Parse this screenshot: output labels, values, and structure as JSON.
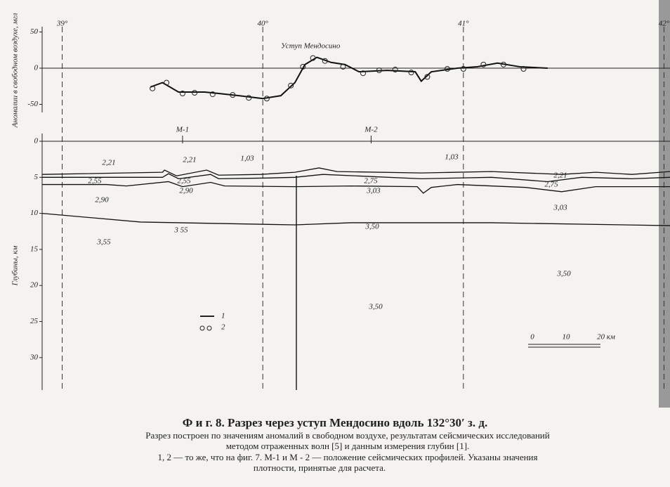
{
  "figure": {
    "x_ticks": [
      {
        "value": 39,
        "label": "39°"
      },
      {
        "value": 40,
        "label": "40°"
      },
      {
        "value": 41,
        "label": "41°"
      },
      {
        "value": 42,
        "label": "42°"
      }
    ],
    "xlim": [
      38.9,
      42.03
    ],
    "anomaly_panel": {
      "y_label": "Аномалии в свободном воздухе, мгл",
      "yticks": [
        50,
        0,
        -50
      ],
      "annotation": "Уступ Мендосино",
      "curve": {
        "x": [
          39.44,
          39.5,
          39.58,
          39.71,
          39.78,
          39.88,
          40.0,
          40.09,
          40.16,
          40.21,
          40.27,
          40.34,
          40.41,
          40.48,
          40.62,
          40.76,
          40.79,
          40.84,
          40.97,
          41.07,
          41.17,
          41.28,
          41.42
        ],
        "values": [
          -26,
          -20,
          -33,
          -33,
          -35,
          -38,
          -42,
          -38,
          -20,
          5,
          15,
          8,
          5,
          -5,
          -3,
          -5,
          -18,
          -5,
          0,
          2,
          7,
          2,
          0
        ]
      },
      "observed": {
        "x": [
          39.45,
          39.52,
          39.6,
          39.66,
          39.75,
          39.85,
          39.93,
          40.02,
          40.14,
          40.2,
          40.25,
          40.31,
          40.4,
          40.5,
          40.58,
          40.66,
          40.74,
          40.82,
          40.92,
          41.0,
          41.1,
          41.2,
          41.3
        ],
        "values": [
          -28,
          -20,
          -35,
          -34,
          -36,
          -37,
          -41,
          -42,
          -24,
          2,
          14,
          10,
          2,
          -7,
          -3,
          -2,
          -6,
          -12,
          -1,
          -1,
          5,
          5,
          -1
        ]
      }
    },
    "section_panel": {
      "y_label": "Глубины, км",
      "yticks": [
        0,
        5,
        10,
        15,
        20,
        25,
        30
      ],
      "ylim": [
        0,
        34.5
      ],
      "profiles": [
        {
          "name": "М-1",
          "x": 39.6
        },
        {
          "name": "М-2",
          "x": 40.54
        }
      ],
      "boundaries": [
        {
          "x": [
            38.9,
            39.5,
            39.51,
            39.57,
            39.72,
            39.78,
            39.99,
            40.16,
            40.28,
            40.37,
            40.79,
            41.14,
            41.49,
            41.66,
            41.84,
            42.03
          ],
          "depth": [
            4.6,
            4.3,
            4.0,
            4.8,
            4.0,
            4.7,
            4.6,
            4.3,
            3.7,
            4.2,
            4.4,
            4.2,
            4.6,
            4.3,
            4.6,
            4.2
          ]
        },
        {
          "x": [
            38.9,
            39.5,
            39.53,
            39.58,
            39.74,
            39.78,
            40.02,
            40.16,
            40.3,
            40.79,
            41.14,
            41.42,
            41.59,
            41.84,
            42.03
          ],
          "depth": [
            5.0,
            5.0,
            4.5,
            5.2,
            4.6,
            5.2,
            5.1,
            5.0,
            4.6,
            5.2,
            5.0,
            5.6,
            5.0,
            5.2,
            5.0
          ]
        },
        {
          "x": [
            38.9,
            39.22,
            39.32,
            39.53,
            39.6,
            39.74,
            39.81,
            40.16,
            40.44,
            40.77,
            40.8,
            40.84,
            40.97,
            41.31,
            41.49,
            41.66,
            42.03
          ],
          "depth": [
            6.0,
            6.0,
            6.2,
            5.6,
            6.3,
            5.7,
            6.2,
            6.3,
            6.2,
            6.3,
            7.2,
            6.4,
            6.0,
            6.4,
            7.0,
            6.3,
            6.3
          ]
        },
        {
          "x": [
            38.9,
            39.39,
            40.16,
            40.44,
            41.14,
            42.03
          ],
          "depth": [
            10.0,
            11.2,
            11.6,
            11.3,
            11.3,
            11.7
          ]
        }
      ],
      "densities": [
        "2,21",
        "2,55",
        "2,90",
        "3,55",
        "2,21",
        "2,55",
        "2,90",
        "3 55",
        "1,03",
        "2,75",
        "3,03",
        "3,50",
        "3,50",
        "1,03",
        "2,21",
        "2,75",
        "3,03",
        "3,50"
      ],
      "legend": [
        "1",
        "2"
      ],
      "scale_bar": [
        "0",
        "10",
        "20 км"
      ]
    }
  },
  "caption": {
    "title": "Ф и г. 8. Разрез через уступ Мендосино вдоль 132°30′ з. д.",
    "lines": [
      "Разрез построен по значениям аномалий в свободном воздухе, результатам сейсмических исследований",
      "методом отраженных волн [5] и данным измерения глубин [1].",
      "1, 2 — то же, что на фиг. 7. М-1 и М - 2 — положение сейсмических профилей. Указаны значения",
      "плотности, принятые для расчета."
    ]
  }
}
